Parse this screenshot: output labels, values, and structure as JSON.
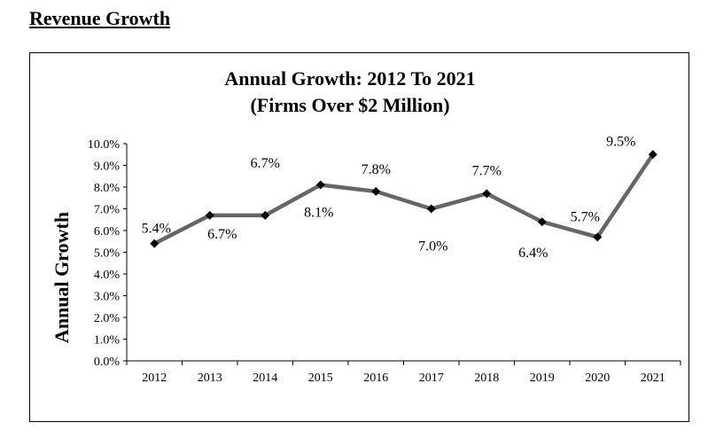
{
  "heading": "Revenue Growth",
  "chart_data": {
    "type": "line",
    "title": "Annual Growth: 2012 To 2021",
    "subtitle": "(Firms Over $2 Million)",
    "xlabel": "",
    "ylabel": "Annual Growth",
    "categories": [
      "2012",
      "2013",
      "2014",
      "2015",
      "2016",
      "2017",
      "2018",
      "2019",
      "2020",
      "2021"
    ],
    "values": [
      5.4,
      6.7,
      6.7,
      8.1,
      7.8,
      7.0,
      7.7,
      6.4,
      5.7,
      9.5
    ],
    "data_labels": [
      "5.4%",
      "6.7%",
      "6.7%",
      "8.1%",
      "7.8%",
      "7.0%",
      "7.7%",
      "6.4%",
      "5.7%",
      "9.5%"
    ],
    "ylim": [
      0,
      10
    ],
    "yticks": [
      "0.0%",
      "1.0%",
      "2.0%",
      "3.0%",
      "4.0%",
      "5.0%",
      "6.0%",
      "7.0%",
      "8.0%",
      "9.0%",
      "10.0%"
    ],
    "grid": false,
    "legend": "none",
    "line_color": "#666666",
    "marker_color": "#000000"
  }
}
